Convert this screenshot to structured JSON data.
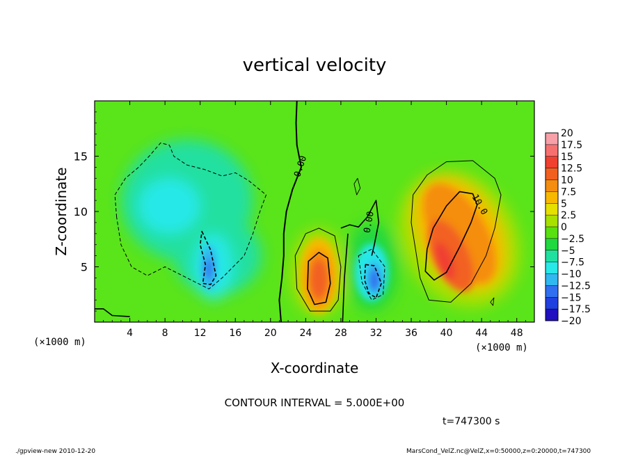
{
  "chart_data": {
    "type": "heatmap",
    "title": "vertical velocity",
    "xlabel": "X-coordinate",
    "ylabel": "Z-coordinate",
    "x_unit_left": "(×1000 m)",
    "x_unit_right": "(×1000 m)",
    "xlim": [
      0,
      50
    ],
    "ylim": [
      0,
      20
    ],
    "x_ticks": [
      "4",
      "8",
      "12",
      "16",
      "20",
      "24",
      "28",
      "32",
      "36",
      "40",
      "44",
      "48"
    ],
    "x_tick_values": [
      4,
      8,
      12,
      16,
      20,
      24,
      28,
      32,
      36,
      40,
      44,
      48
    ],
    "y_ticks": [
      "5",
      "10",
      "15"
    ],
    "y_tick_values": [
      5,
      10,
      15
    ],
    "contour_labels": [
      {
        "text": "0.00",
        "x": 23.7,
        "z": 14.0,
        "rotate": -72
      },
      {
        "text": "0.00",
        "x": 31.5,
        "z": 9.0,
        "rotate": -80
      },
      {
        "text": "10.0",
        "x": 43.5,
        "z": 10.5,
        "rotate": 60
      }
    ],
    "colorbar": {
      "labels": [
        "20",
        "17.5",
        "15",
        "12.5",
        "10",
        "7.5",
        "5",
        "2.5",
        "0",
        "-2.5",
        "-5",
        "-7.5",
        "-10",
        "-12.5",
        "-15",
        "-17.5",
        "-20"
      ],
      "colors": [
        "#f7a0a8",
        "#f77070",
        "#f04030",
        "#f26020",
        "#f58d10",
        "#f8b800",
        "#e6e000",
        "#a8e000",
        "#58e010",
        "#20d840",
        "#20e0a0",
        "#28e8e8",
        "#30b8f0",
        "#3070f0",
        "#2040e0",
        "#2010c0",
        "#6a10b8"
      ]
    },
    "contour_interval": "CONTOUR INTERVAL = 5.000E+00",
    "time": "t=747300 s",
    "footer_left": "./gpview-new   2010-12-20",
    "footer_right": "MarsCond_VelZ.nc@VelZ,x=0:50000,z=0:20000,t=747300",
    "features": [
      {
        "kind": "downdraft",
        "x": 9,
        "z": 10,
        "min": -7.5
      },
      {
        "kind": "downdraft",
        "x": 13,
        "z": 5,
        "min": -12.5
      },
      {
        "kind": "updraft",
        "x": 25.5,
        "z": 4,
        "max": 15
      },
      {
        "kind": "downdraft",
        "x": 31.5,
        "z": 4,
        "min": -12.5
      },
      {
        "kind": "updraft",
        "x": 40,
        "z": 6,
        "max": 15
      }
    ]
  }
}
